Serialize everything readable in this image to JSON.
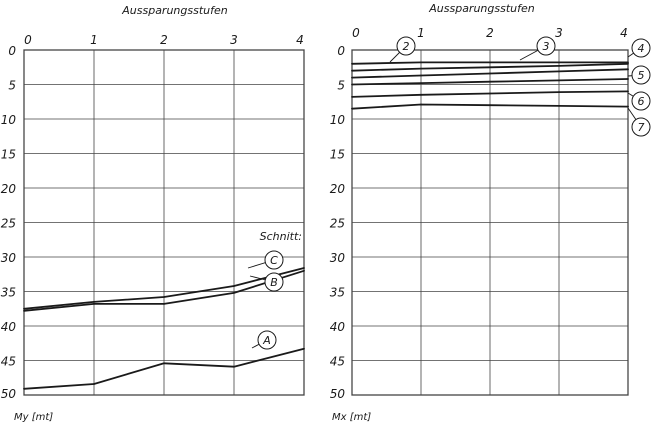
{
  "chart_data": [
    {
      "type": "line",
      "title": "Aussparungsstufen",
      "xlabel": "Aussparungsstufen",
      "ylabel": "My [mt]",
      "xlim": [
        0,
        4
      ],
      "ylim": [
        50,
        0
      ],
      "x_ticks": [
        "0",
        "1",
        "2",
        "3",
        "4"
      ],
      "y_ticks": [
        "0",
        "5",
        "10",
        "15",
        "20",
        "25",
        "30",
        "35",
        "40",
        "45",
        "50"
      ],
      "annotation": "Schnitt:",
      "grid": true,
      "series": [
        {
          "name": "C",
          "x": [
            0,
            1,
            2,
            3,
            4
          ],
          "values": [
            37.5,
            36.5,
            35.8,
            34.2,
            31.6
          ]
        },
        {
          "name": "B",
          "x": [
            0,
            1,
            2,
            3,
            4
          ],
          "values": [
            37.8,
            36.8,
            36.8,
            35.2,
            32.0
          ]
        },
        {
          "name": "A",
          "x": [
            0,
            1,
            2,
            3,
            4
          ],
          "values": [
            49.1,
            48.4,
            45.4,
            45.9,
            43.3
          ]
        }
      ]
    },
    {
      "type": "line",
      "title": "Aussparungsstufen",
      "xlabel": "Aussparungsstufen",
      "ylabel": "Mx [mt]",
      "xlim": [
        0,
        4
      ],
      "ylim": [
        50,
        0
      ],
      "x_ticks": [
        "0",
        "1",
        "2",
        "3",
        "4"
      ],
      "y_ticks": [
        "0",
        "5",
        "10",
        "15",
        "20",
        "25",
        "30",
        "35",
        "40",
        "45",
        "50"
      ],
      "grid": true,
      "series": [
        {
          "name": "2",
          "x": [
            0,
            1,
            2,
            3,
            4
          ],
          "values": [
            2.0,
            1.8,
            1.8,
            1.8,
            1.8
          ]
        },
        {
          "name": "3",
          "x": [
            0,
            1,
            2,
            3,
            4
          ],
          "values": [
            3.0,
            2.7,
            2.5,
            2.3,
            2.0
          ]
        },
        {
          "name": "4",
          "x": [
            0,
            1,
            2,
            3,
            4
          ],
          "values": [
            4.0,
            3.7,
            3.4,
            3.1,
            2.8
          ]
        },
        {
          "name": "5",
          "x": [
            0,
            1,
            2,
            3,
            4
          ],
          "values": [
            5.0,
            4.8,
            4.6,
            4.4,
            4.2
          ]
        },
        {
          "name": "6",
          "x": [
            0,
            1,
            2,
            3,
            4
          ],
          "values": [
            6.8,
            6.5,
            6.3,
            6.1,
            6.0
          ]
        },
        {
          "name": "7",
          "x": [
            0,
            1,
            2,
            3,
            4
          ],
          "values": [
            8.5,
            7.9,
            8.0,
            8.1,
            8.2
          ]
        }
      ]
    }
  ]
}
